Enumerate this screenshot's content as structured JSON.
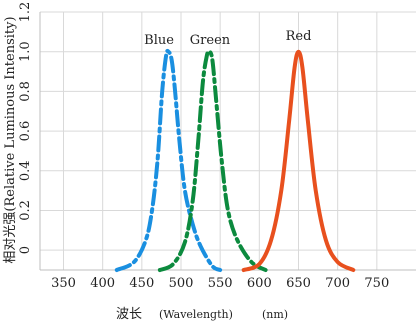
{
  "chart_data": {
    "type": "line",
    "xlabel_main": "波长",
    "xlabel_en": "(Wavelength)",
    "xlabel_unit": "(nm)",
    "ylabel": "相对光强(Relative Luminous Intensity)",
    "xlim": [
      320,
      800
    ],
    "ylim": [
      -0.1,
      1.2
    ],
    "x_ticks": [
      350,
      400,
      450,
      500,
      550,
      600,
      650,
      700,
      750
    ],
    "y_ticks": [
      0,
      0.2,
      0.4,
      0.6,
      0.8,
      1.0,
      1.2
    ],
    "y_tick_labels": [
      "0",
      "0.2",
      "0.4",
      "0.6",
      "0.8",
      "1.0",
      "1.2"
    ],
    "grid": "both",
    "series": [
      {
        "name": "Blue",
        "color": "#1a8fe0",
        "style": "dash-dot",
        "points": [
          [
            418,
            -0.1
          ],
          [
            440,
            -0.06
          ],
          [
            455,
            0.05
          ],
          [
            463,
            0.2
          ],
          [
            470,
            0.45
          ],
          [
            476,
            0.8
          ],
          [
            481,
            0.98
          ],
          [
            484,
            1.0
          ],
          [
            488,
            0.96
          ],
          [
            492,
            0.82
          ],
          [
            498,
            0.55
          ],
          [
            505,
            0.3
          ],
          [
            515,
            0.13
          ],
          [
            525,
            0.02
          ],
          [
            540,
            -0.08
          ],
          [
            550,
            -0.1
          ]
        ]
      },
      {
        "name": "Green",
        "color": "#0c8a3e",
        "style": "dash-dot",
        "points": [
          [
            473,
            -0.1
          ],
          [
            490,
            -0.07
          ],
          [
            505,
            0.04
          ],
          [
            515,
            0.25
          ],
          [
            522,
            0.55
          ],
          [
            528,
            0.85
          ],
          [
            533,
            0.98
          ],
          [
            536,
            1.0
          ],
          [
            540,
            0.96
          ],
          [
            545,
            0.75
          ],
          [
            552,
            0.45
          ],
          [
            560,
            0.2
          ],
          [
            572,
            0.05
          ],
          [
            590,
            -0.06
          ],
          [
            608,
            -0.1
          ]
        ]
      },
      {
        "name": "Red",
        "color": "#e8501e",
        "style": "solid",
        "points": [
          [
            580,
            -0.1
          ],
          [
            600,
            -0.07
          ],
          [
            615,
            0.05
          ],
          [
            628,
            0.3
          ],
          [
            638,
            0.65
          ],
          [
            645,
            0.92
          ],
          [
            650,
            1.0
          ],
          [
            655,
            0.92
          ],
          [
            662,
            0.65
          ],
          [
            672,
            0.3
          ],
          [
            685,
            0.05
          ],
          [
            700,
            -0.06
          ],
          [
            720,
            -0.1
          ]
        ]
      }
    ],
    "series_labels": [
      {
        "text": "Blue",
        "x": 472,
        "y": 1.04
      },
      {
        "text": "Green",
        "x": 537,
        "y": 1.04
      },
      {
        "text": "Red",
        "x": 650,
        "y": 1.06
      }
    ]
  }
}
